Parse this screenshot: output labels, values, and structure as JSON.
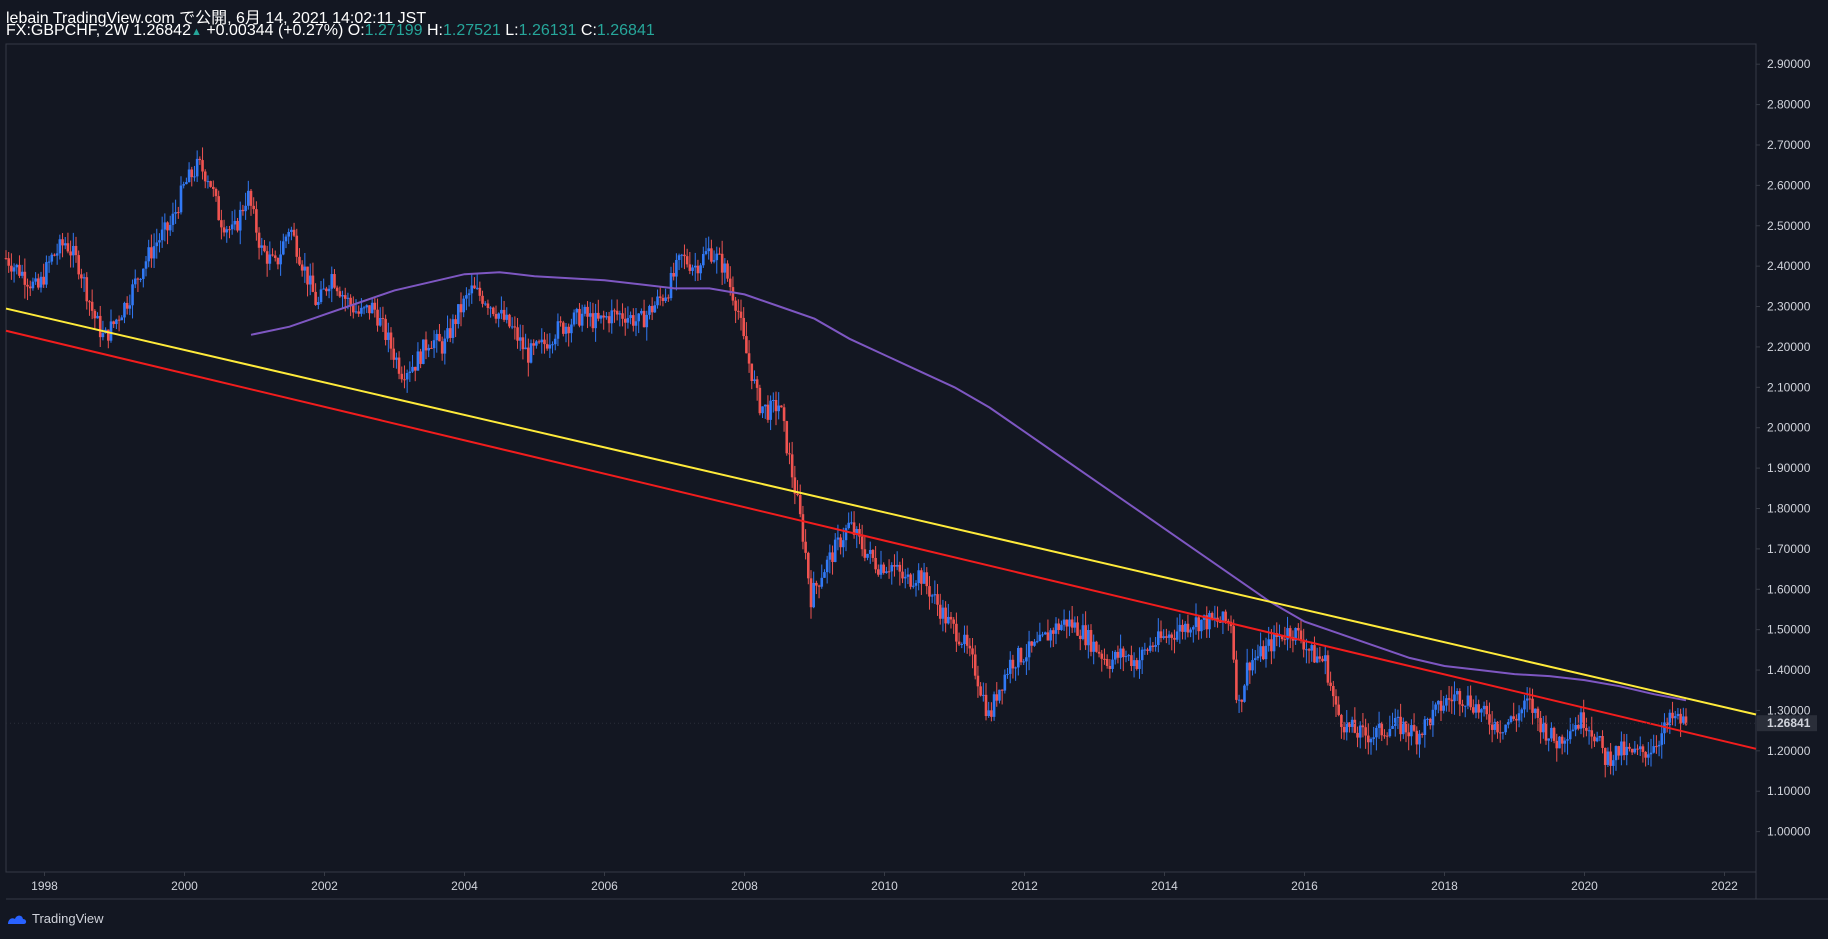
{
  "header": {
    "line1": "lebain TradingView.com で公開, 6月 14, 2021 14:02:11 JST",
    "symbol": "FX:GBPCHF, 2W",
    "last": "1.26842",
    "change": "+0.00344 (+0.27%)",
    "o_label": "O:",
    "o_value": "1.27199",
    "h_label": "H:",
    "h_value": "1.27521",
    "l_label": "L:",
    "l_value": "1.26131",
    "c_label": "C:",
    "c_value": "1.26841"
  },
  "footer": {
    "brand": "TradingView"
  },
  "colors": {
    "background": "#131722",
    "up": "#3179f5",
    "down": "#ef5350",
    "ma": "#7e57c2",
    "yellow_line": "#ffeb3b",
    "red_line": "#f21d1d"
  },
  "chart_data": {
    "type": "candlestick",
    "symbol": "FX:GBPCHF",
    "interval": "2W",
    "x_ticks": [
      "1998",
      "2000",
      "2002",
      "2004",
      "2006",
      "2008",
      "2010",
      "2012",
      "2014",
      "2016",
      "2018",
      "2020",
      "2022"
    ],
    "y_ticks": [
      "1.00000",
      "1.10000",
      "1.20000",
      "1.30000",
      "1.40000",
      "1.50000",
      "1.60000",
      "1.70000",
      "1.80000",
      "1.90000",
      "2.00000",
      "2.10000",
      "2.20000",
      "2.30000",
      "2.40000",
      "2.50000",
      "2.60000",
      "2.70000",
      "2.80000",
      "2.90000"
    ],
    "x_range": [
      1997.45,
      2022.45
    ],
    "y_range": [
      0.9,
      2.95
    ],
    "last_price_label": "1.26841",
    "price_path": [
      [
        1997.45,
        2.42
      ],
      [
        1997.7,
        2.38
      ],
      [
        1997.9,
        2.34
      ],
      [
        1998.1,
        2.42
      ],
      [
        1998.3,
        2.46
      ],
      [
        1998.5,
        2.4
      ],
      [
        1998.7,
        2.28
      ],
      [
        1998.85,
        2.22
      ],
      [
        1999.0,
        2.26
      ],
      [
        1999.2,
        2.32
      ],
      [
        1999.4,
        2.4
      ],
      [
        1999.6,
        2.46
      ],
      [
        1999.8,
        2.5
      ],
      [
        2000.0,
        2.6
      ],
      [
        2000.2,
        2.65
      ],
      [
        2000.35,
        2.62
      ],
      [
        2000.5,
        2.52
      ],
      [
        2000.7,
        2.48
      ],
      [
        2000.9,
        2.58
      ],
      [
        2001.1,
        2.44
      ],
      [
        2001.3,
        2.4
      ],
      [
        2001.5,
        2.5
      ],
      [
        2001.7,
        2.4
      ],
      [
        2001.9,
        2.3
      ],
      [
        2002.1,
        2.38
      ],
      [
        2002.3,
        2.32
      ],
      [
        2002.5,
        2.28
      ],
      [
        2002.7,
        2.3
      ],
      [
        2002.9,
        2.22
      ],
      [
        2003.1,
        2.14
      ],
      [
        2003.3,
        2.16
      ],
      [
        2003.5,
        2.22
      ],
      [
        2003.7,
        2.2
      ],
      [
        2003.9,
        2.28
      ],
      [
        2004.1,
        2.34
      ],
      [
        2004.3,
        2.32
      ],
      [
        2004.5,
        2.28
      ],
      [
        2004.7,
        2.24
      ],
      [
        2004.9,
        2.18
      ],
      [
        2005.1,
        2.2
      ],
      [
        2005.3,
        2.24
      ],
      [
        2005.5,
        2.26
      ],
      [
        2005.7,
        2.28
      ],
      [
        2005.9,
        2.26
      ],
      [
        2006.1,
        2.28
      ],
      [
        2006.3,
        2.28
      ],
      [
        2006.5,
        2.26
      ],
      [
        2006.7,
        2.3
      ],
      [
        2006.9,
        2.34
      ],
      [
        2007.1,
        2.42
      ],
      [
        2007.3,
        2.4
      ],
      [
        2007.5,
        2.44
      ],
      [
        2007.7,
        2.4
      ],
      [
        2007.9,
        2.3
      ],
      [
        2008.0,
        2.2
      ],
      [
        2008.1,
        2.14
      ],
      [
        2008.2,
        2.06
      ],
      [
        2008.35,
        2.04
      ],
      [
        2008.5,
        2.06
      ],
      [
        2008.6,
        1.96
      ],
      [
        2008.75,
        1.82
      ],
      [
        2008.85,
        1.72
      ],
      [
        2008.95,
        1.58
      ],
      [
        2009.1,
        1.64
      ],
      [
        2009.3,
        1.7
      ],
      [
        2009.5,
        1.76
      ],
      [
        2009.7,
        1.7
      ],
      [
        2009.9,
        1.66
      ],
      [
        2010.1,
        1.66
      ],
      [
        2010.3,
        1.62
      ],
      [
        2010.5,
        1.64
      ],
      [
        2010.7,
        1.58
      ],
      [
        2010.9,
        1.52
      ],
      [
        2011.1,
        1.48
      ],
      [
        2011.3,
        1.4
      ],
      [
        2011.5,
        1.28
      ],
      [
        2011.6,
        1.34
      ],
      [
        2011.8,
        1.42
      ],
      [
        2012.0,
        1.44
      ],
      [
        2012.2,
        1.46
      ],
      [
        2012.4,
        1.5
      ],
      [
        2012.6,
        1.52
      ],
      [
        2012.8,
        1.5
      ],
      [
        2013.0,
        1.46
      ],
      [
        2013.2,
        1.42
      ],
      [
        2013.4,
        1.44
      ],
      [
        2013.6,
        1.42
      ],
      [
        2013.8,
        1.46
      ],
      [
        2014.0,
        1.48
      ],
      [
        2014.2,
        1.5
      ],
      [
        2014.4,
        1.52
      ],
      [
        2014.6,
        1.52
      ],
      [
        2014.8,
        1.52
      ],
      [
        2014.95,
        1.52
      ],
      [
        2015.05,
        1.3
      ],
      [
        2015.2,
        1.42
      ],
      [
        2015.4,
        1.44
      ],
      [
        2015.6,
        1.48
      ],
      [
        2015.8,
        1.5
      ],
      [
        2015.95,
        1.48
      ],
      [
        2016.1,
        1.44
      ],
      [
        2016.3,
        1.42
      ],
      [
        2016.45,
        1.3
      ],
      [
        2016.6,
        1.26
      ],
      [
        2016.8,
        1.24
      ],
      [
        2017.0,
        1.24
      ],
      [
        2017.2,
        1.26
      ],
      [
        2017.4,
        1.26
      ],
      [
        2017.6,
        1.24
      ],
      [
        2017.8,
        1.28
      ],
      [
        2018.0,
        1.32
      ],
      [
        2018.2,
        1.34
      ],
      [
        2018.4,
        1.32
      ],
      [
        2018.6,
        1.28
      ],
      [
        2018.8,
        1.26
      ],
      [
        2019.0,
        1.28
      ],
      [
        2019.2,
        1.32
      ],
      [
        2019.4,
        1.26
      ],
      [
        2019.6,
        1.22
      ],
      [
        2019.8,
        1.26
      ],
      [
        2020.0,
        1.28
      ],
      [
        2020.15,
        1.24
      ],
      [
        2020.3,
        1.18
      ],
      [
        2020.5,
        1.2
      ],
      [
        2020.7,
        1.19
      ],
      [
        2020.9,
        1.2
      ],
      [
        2021.1,
        1.24
      ],
      [
        2021.25,
        1.28
      ],
      [
        2021.45,
        1.26842
      ]
    ],
    "moving_average": [
      [
        2000.95,
        2.23
      ],
      [
        2001.5,
        2.25
      ],
      [
        2002.0,
        2.28
      ],
      [
        2002.5,
        2.31
      ],
      [
        2003.0,
        2.34
      ],
      [
        2003.5,
        2.36
      ],
      [
        2004.0,
        2.38
      ],
      [
        2004.5,
        2.385
      ],
      [
        2005.0,
        2.375
      ],
      [
        2005.5,
        2.37
      ],
      [
        2006.0,
        2.365
      ],
      [
        2006.5,
        2.355
      ],
      [
        2007.0,
        2.345
      ],
      [
        2007.5,
        2.345
      ],
      [
        2008.0,
        2.33
      ],
      [
        2008.5,
        2.3
      ],
      [
        2009.0,
        2.27
      ],
      [
        2009.5,
        2.22
      ],
      [
        2010.0,
        2.18
      ],
      [
        2010.5,
        2.14
      ],
      [
        2011.0,
        2.1
      ],
      [
        2011.5,
        2.05
      ],
      [
        2012.0,
        1.99
      ],
      [
        2012.5,
        1.93
      ],
      [
        2013.0,
        1.87
      ],
      [
        2013.5,
        1.81
      ],
      [
        2014.0,
        1.75
      ],
      [
        2014.5,
        1.69
      ],
      [
        2015.0,
        1.63
      ],
      [
        2015.5,
        1.57
      ],
      [
        2016.0,
        1.52
      ],
      [
        2016.5,
        1.49
      ],
      [
        2017.0,
        1.46
      ],
      [
        2017.5,
        1.43
      ],
      [
        2018.0,
        1.41
      ],
      [
        2018.5,
        1.4
      ],
      [
        2019.0,
        1.39
      ],
      [
        2019.5,
        1.385
      ],
      [
        2020.0,
        1.375
      ],
      [
        2020.5,
        1.36
      ],
      [
        2021.0,
        1.34
      ],
      [
        2021.45,
        1.325
      ]
    ],
    "yellow_trendline": [
      [
        1997.45,
        2.295
      ],
      [
        2022.45,
        1.29
      ]
    ],
    "red_trendline": [
      [
        1997.45,
        2.24
      ],
      [
        2022.45,
        1.205
      ]
    ]
  }
}
